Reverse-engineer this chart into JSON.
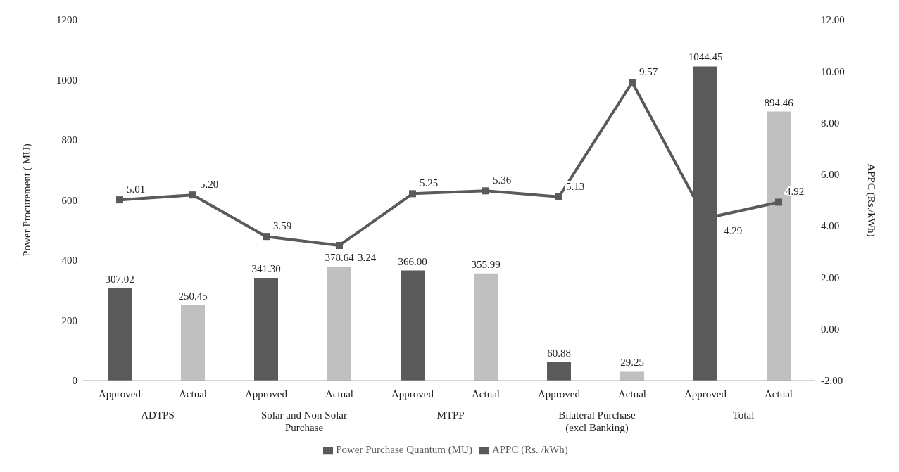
{
  "chart_data": {
    "type": "bar",
    "categories": [
      "Approved",
      "Actual",
      "Approved",
      "Actual",
      "Approved",
      "Actual",
      "Approved",
      "Actual",
      "Approved",
      "Actual"
    ],
    "annotations": [
      "ADTPS",
      "Solar and Non Solar Purchase",
      "MTPP",
      "Bilateral Purchase (excl Banking)",
      "Total"
    ],
    "ylabel": "Power Procurement ( MU)",
    "y2label": "APPC (Rs./kWh)",
    "ylim": [
      0,
      1200
    ],
    "yticks": [
      0,
      200,
      400,
      600,
      800,
      1000,
      1200
    ],
    "y2lim": [
      -2,
      12
    ],
    "y2ticks": [
      {
        "value": -2,
        "label": "-2.00"
      },
      {
        "value": 0,
        "label": "0.00"
      },
      {
        "value": 2,
        "label": "2.00"
      },
      {
        "value": 4,
        "label": "4.00"
      },
      {
        "value": 6,
        "label": "6.00"
      },
      {
        "value": 8,
        "label": "8.00"
      },
      {
        "value": 10,
        "label": "10.00"
      },
      {
        "value": 12,
        "label": "12.00"
      }
    ],
    "series": [
      {
        "name": "Power Purchase Quantum (MU)",
        "color": "#5a5a5a",
        "colors": [
          "#5a5a5a",
          "#c0c0c0",
          "#5a5a5a",
          "#c0c0c0",
          "#5a5a5a",
          "#c0c0c0",
          "#5a5a5a",
          "#c0c0c0",
          "#5a5a5a",
          "#c0c0c0"
        ],
        "values": [
          307.02,
          250.45,
          341.3,
          378.64,
          366.0,
          355.99,
          60.88,
          29.25,
          1044.45,
          894.46
        ],
        "value_labels": [
          "307.02",
          "250.45",
          "341.30",
          "378.64",
          "366.00",
          "355.99",
          "60.88",
          "29.25",
          "1044.45",
          "894.46"
        ]
      },
      {
        "name": "APPC (Rs. /kWh)",
        "type": "line",
        "axis": "y2",
        "color": "#5a5a5a",
        "marker": "square",
        "values": [
          5.01,
          5.2,
          3.59,
          3.24,
          5.25,
          5.36,
          5.13,
          9.57,
          4.29,
          4.92
        ],
        "value_labels": [
          "5.01",
          "5.20",
          "3.59",
          "3.24",
          "5.25",
          "5.36",
          "5.13",
          "9.57",
          "4.29",
          "4.92"
        ]
      }
    ],
    "legend": "bottom",
    "grid": false
  }
}
